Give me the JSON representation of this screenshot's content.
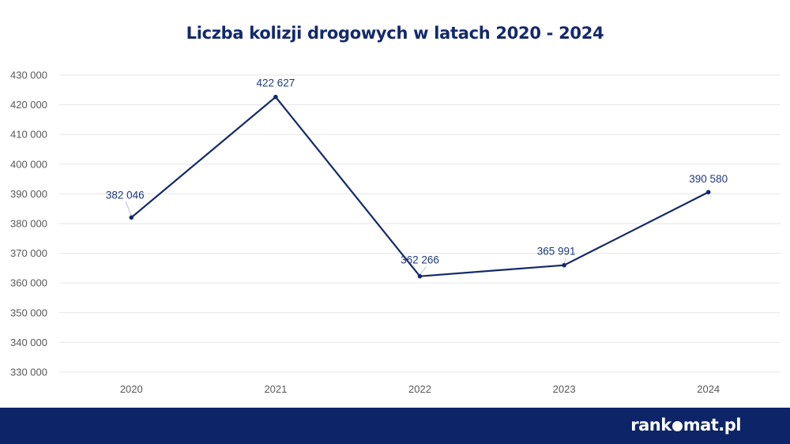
{
  "chart_data": {
    "type": "line",
    "title": "Liczba kolizji drogowych w latach 2020 - 2024",
    "categories": [
      "2020",
      "2021",
      "2022",
      "2023",
      "2024"
    ],
    "series": [
      {
        "values": [
          382046,
          422627,
          362266,
          365991,
          390580
        ]
      }
    ],
    "data_labels": [
      "382 046",
      "422 627",
      "362 266",
      "365 991",
      "390 580"
    ],
    "y_ticks": [
      330000,
      340000,
      350000,
      360000,
      370000,
      380000,
      390000,
      400000,
      410000,
      420000,
      430000
    ],
    "y_tick_labels": [
      "330 000",
      "340 000",
      "350 000",
      "360 000",
      "370 000",
      "380 000",
      "390 000",
      "400 000",
      "410 000",
      "420 000",
      "430 000"
    ],
    "ylim": [
      330000,
      430000
    ],
    "grid": true,
    "legend": "none",
    "colors": {
      "line": "#13296b",
      "label": "#1d3a7a",
      "grid": "#e6e6e6",
      "tick": "#595959"
    }
  },
  "footer": {
    "brand_left": "rank",
    "brand_right": "mat.pl",
    "brand_mark_icon": "brand-star-icon",
    "background": "#0d2468"
  }
}
